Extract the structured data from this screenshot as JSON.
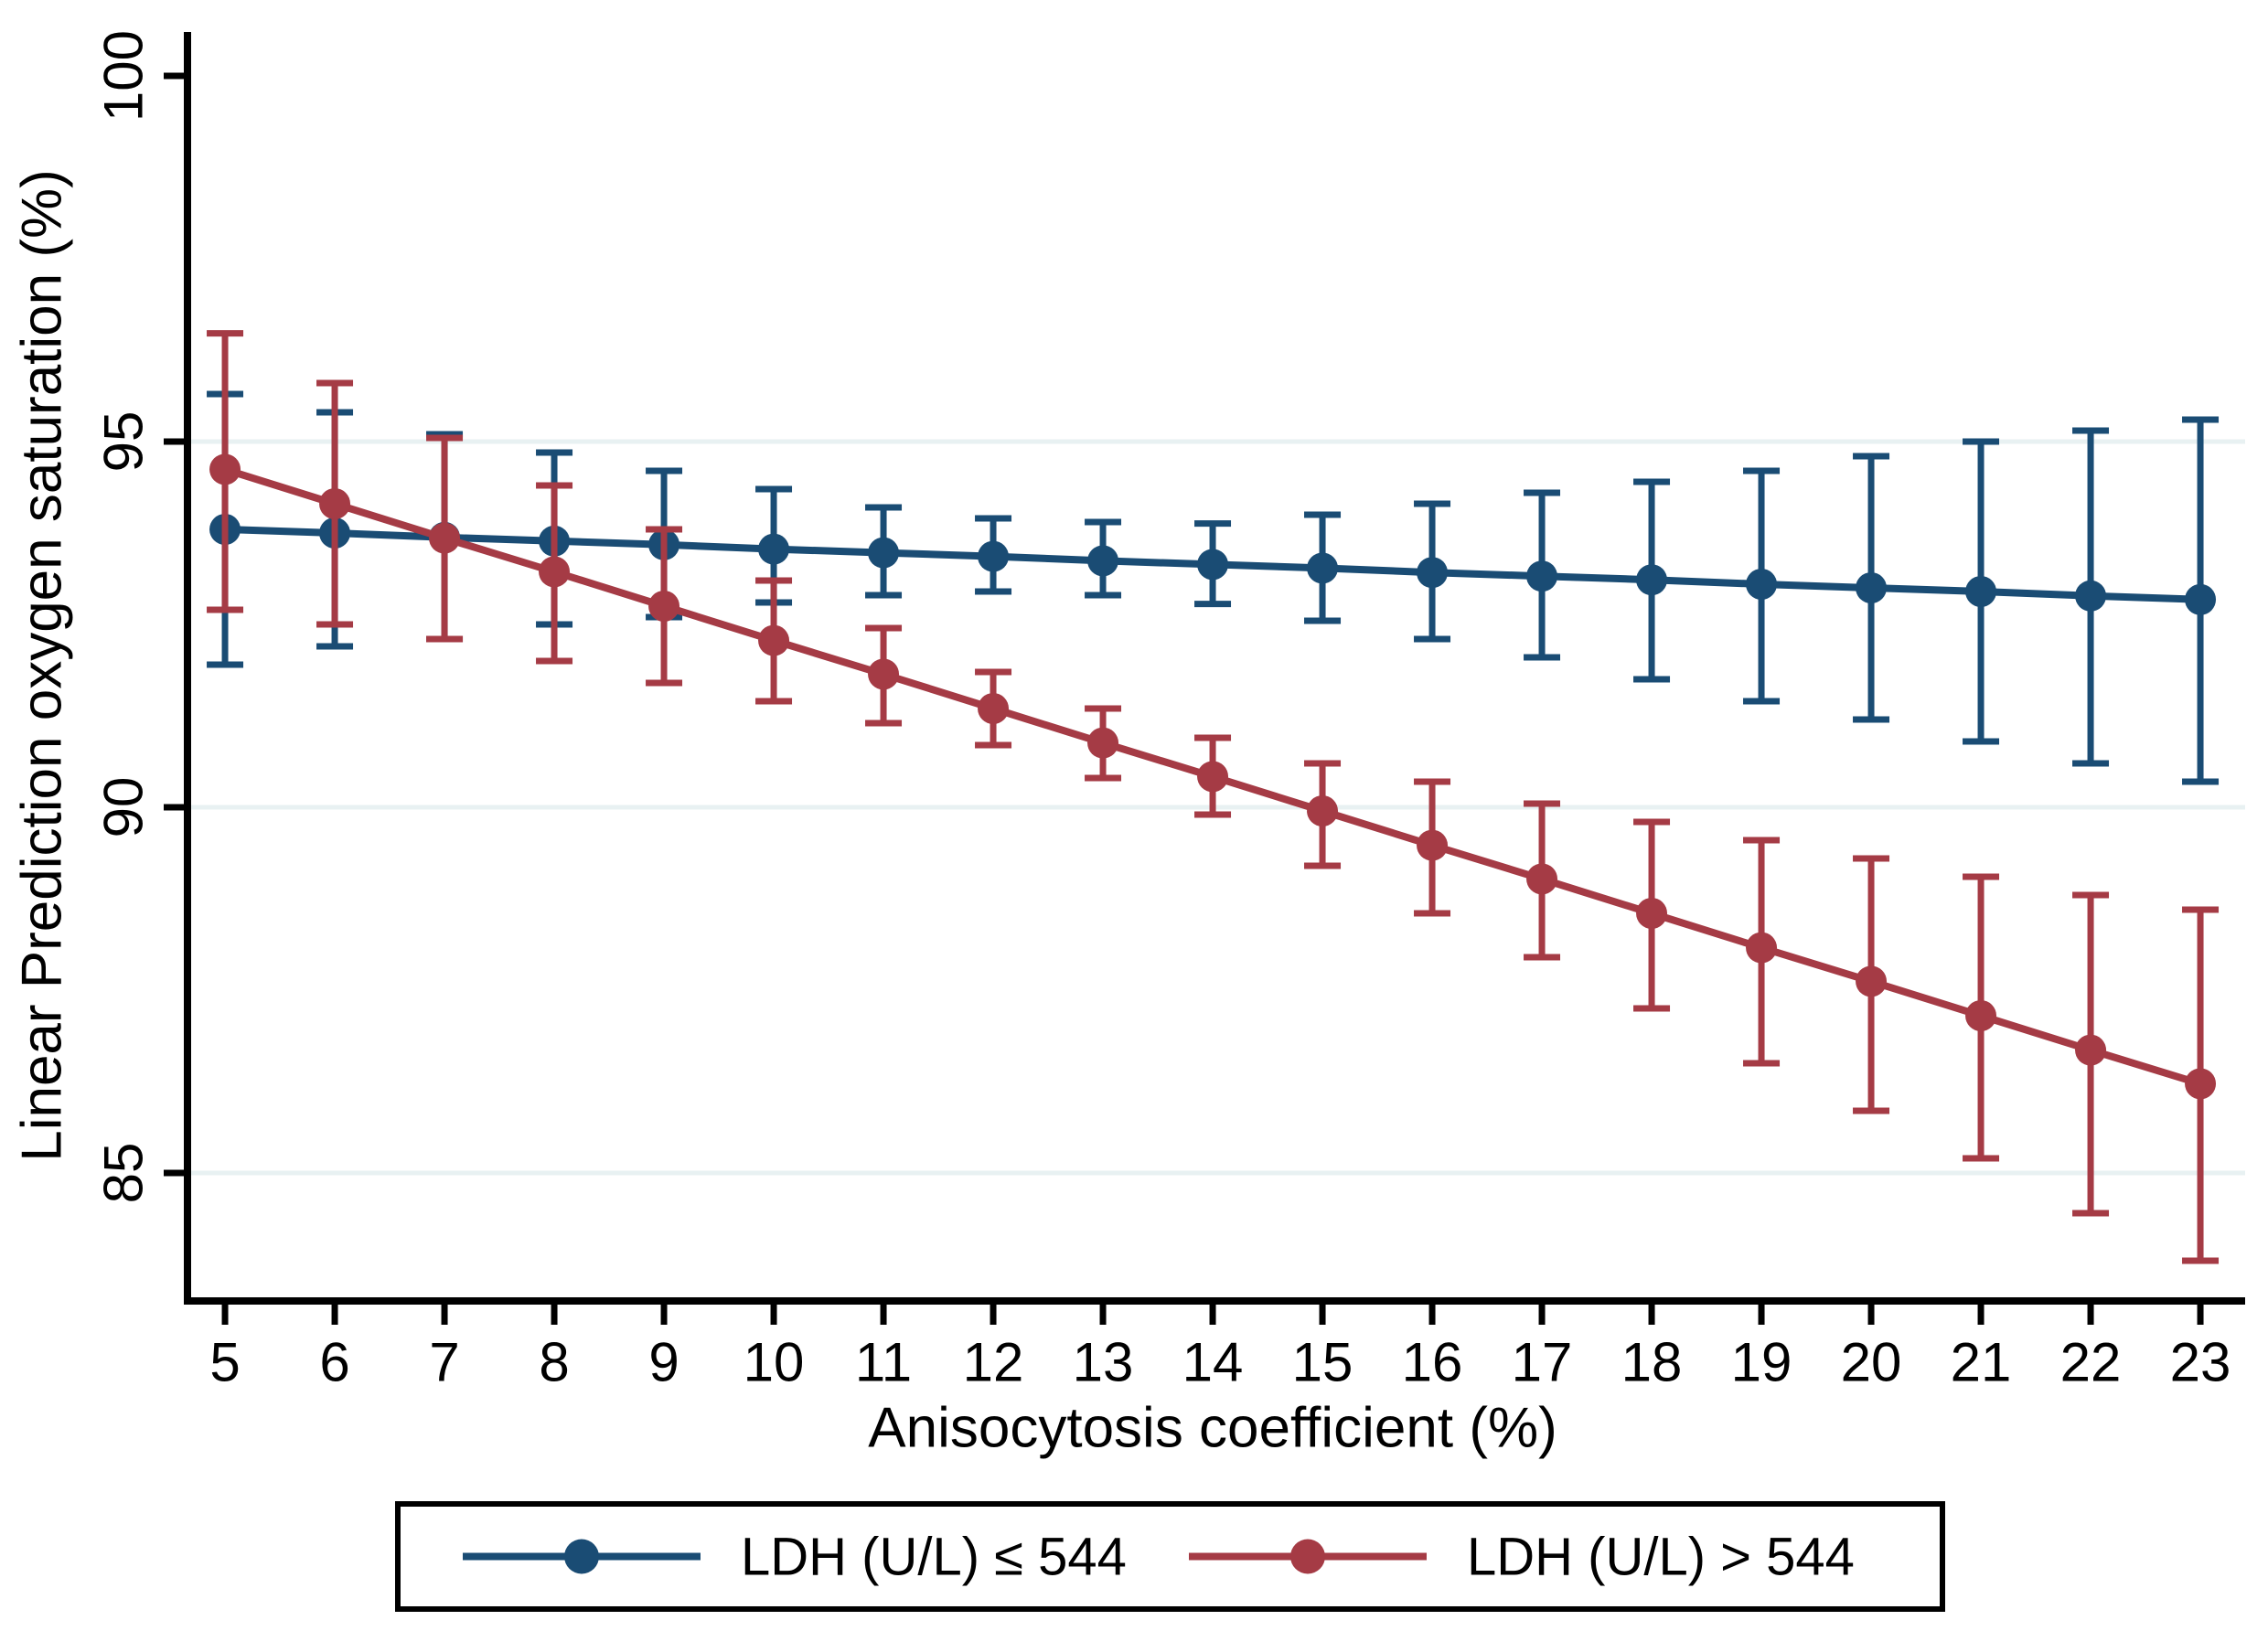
{
  "chart_data": {
    "type": "line",
    "title": "",
    "xlabel": "Anisocytosis coefficient (%)",
    "ylabel": "Linear Prediction oxygen saturation (%)",
    "x": [
      5,
      6,
      7,
      8,
      9,
      10,
      11,
      12,
      13,
      14,
      15,
      16,
      17,
      18,
      19,
      20,
      21,
      22,
      23
    ],
    "xticks": [
      5,
      6,
      7,
      8,
      9,
      10,
      11,
      12,
      13,
      14,
      15,
      16,
      17,
      18,
      19,
      20,
      21,
      22,
      23
    ],
    "yticks": [
      85,
      90,
      95,
      100
    ],
    "grid_yticks": [
      85,
      90,
      95
    ],
    "xlim": [
      4.658,
      23.408
    ],
    "ylim": [
      83.25,
      100.6
    ],
    "grid": "horizontal",
    "grid_color": "#e8f1f2",
    "axis_color": "#000000",
    "background_color": "#ffffff",
    "legend_position": "bottom",
    "series": [
      {
        "name": "LDH (U/L) ≤ 544",
        "color": "#1a4c74",
        "values": [
          93.8,
          93.75,
          93.69,
          93.64,
          93.59,
          93.53,
          93.48,
          93.43,
          93.37,
          93.32,
          93.27,
          93.21,
          93.16,
          93.11,
          93.05,
          93.0,
          92.95,
          92.89,
          92.84
        ],
        "ci_low": [
          91.95,
          92.2,
          92.3,
          92.5,
          92.6,
          92.8,
          92.9,
          92.95,
          92.9,
          92.78,
          92.55,
          92.3,
          92.05,
          91.75,
          91.45,
          91.2,
          90.9,
          90.6,
          90.35
        ],
        "ci_high": [
          95.65,
          95.4,
          95.1,
          94.85,
          94.6,
          94.35,
          94.1,
          93.95,
          93.9,
          93.88,
          94.0,
          94.15,
          94.3,
          94.45,
          94.6,
          94.8,
          95.0,
          95.15,
          95.3
        ]
      },
      {
        "name": "LDH (U/L) > 544",
        "color": "#a53b45",
        "values": [
          94.62,
          94.15,
          93.68,
          93.22,
          92.75,
          92.28,
          91.82,
          91.35,
          90.88,
          90.42,
          89.95,
          89.48,
          89.02,
          88.55,
          88.08,
          87.62,
          87.15,
          86.68,
          86.22
        ],
        "ci_low": [
          92.7,
          92.5,
          92.3,
          92.0,
          91.7,
          91.45,
          91.15,
          90.85,
          90.4,
          89.9,
          89.2,
          88.55,
          87.95,
          87.25,
          86.5,
          85.85,
          85.2,
          84.45,
          83.8
        ],
        "ci_high": [
          96.48,
          95.8,
          95.05,
          94.4,
          93.8,
          93.1,
          92.45,
          91.85,
          91.35,
          90.95,
          90.6,
          90.35,
          90.05,
          89.8,
          89.55,
          89.3,
          89.05,
          88.8,
          88.6
        ]
      }
    ]
  }
}
